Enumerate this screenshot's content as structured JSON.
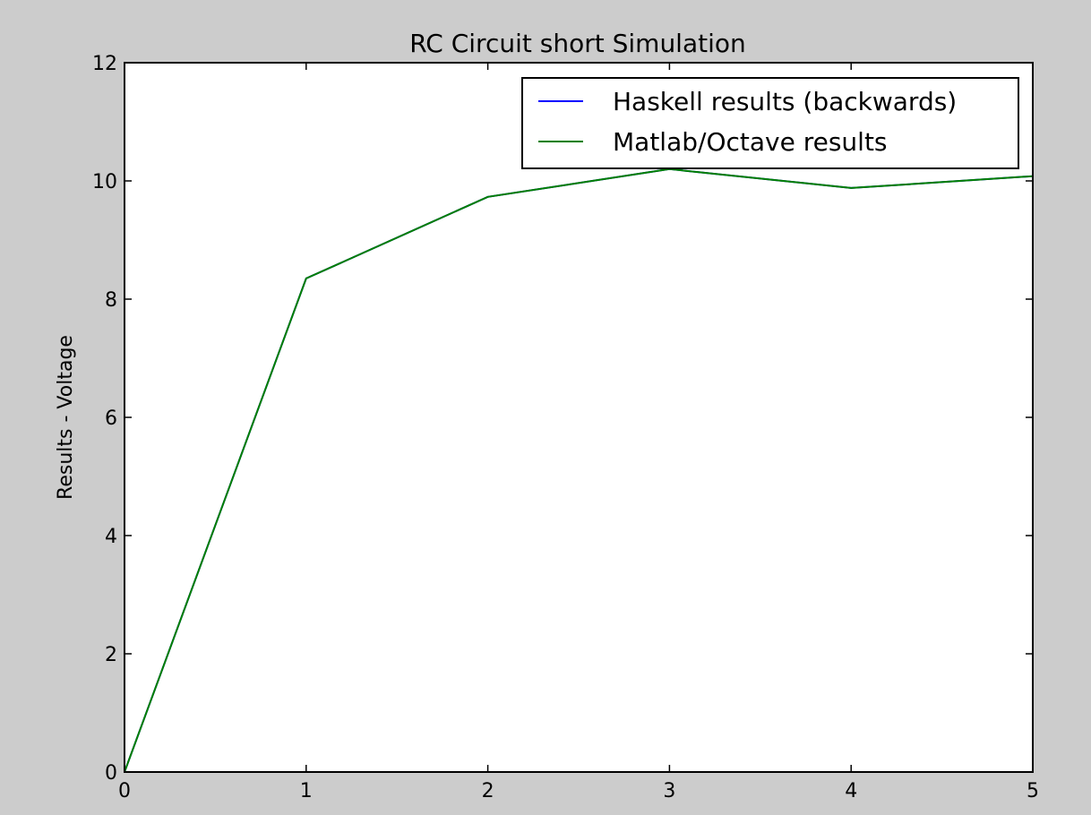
{
  "chart_data": {
    "type": "line",
    "title": "RC Circuit short Simulation",
    "xlabel": "",
    "ylabel": "Results - Voltage",
    "xlim": [
      0,
      5
    ],
    "ylim": [
      0,
      12
    ],
    "xticks": [
      "0",
      "1",
      "2",
      "3",
      "4",
      "5"
    ],
    "yticks": [
      "0",
      "2",
      "4",
      "6",
      "8",
      "10",
      "12"
    ],
    "grid": false,
    "legend_position": "top-right",
    "series": [
      {
        "name": "Haskell results (backwards)",
        "color": "#0000ff",
        "x": [
          0,
          1,
          2,
          3,
          4,
          5
        ],
        "values": [
          0,
          8.35,
          9.73,
          10.2,
          9.88,
          10.08
        ]
      },
      {
        "name": "Matlab/Octave results",
        "color": "#008000",
        "x": [
          0,
          1,
          2,
          3,
          4,
          5
        ],
        "values": [
          0,
          8.35,
          9.73,
          10.2,
          9.88,
          10.08
        ]
      }
    ]
  }
}
